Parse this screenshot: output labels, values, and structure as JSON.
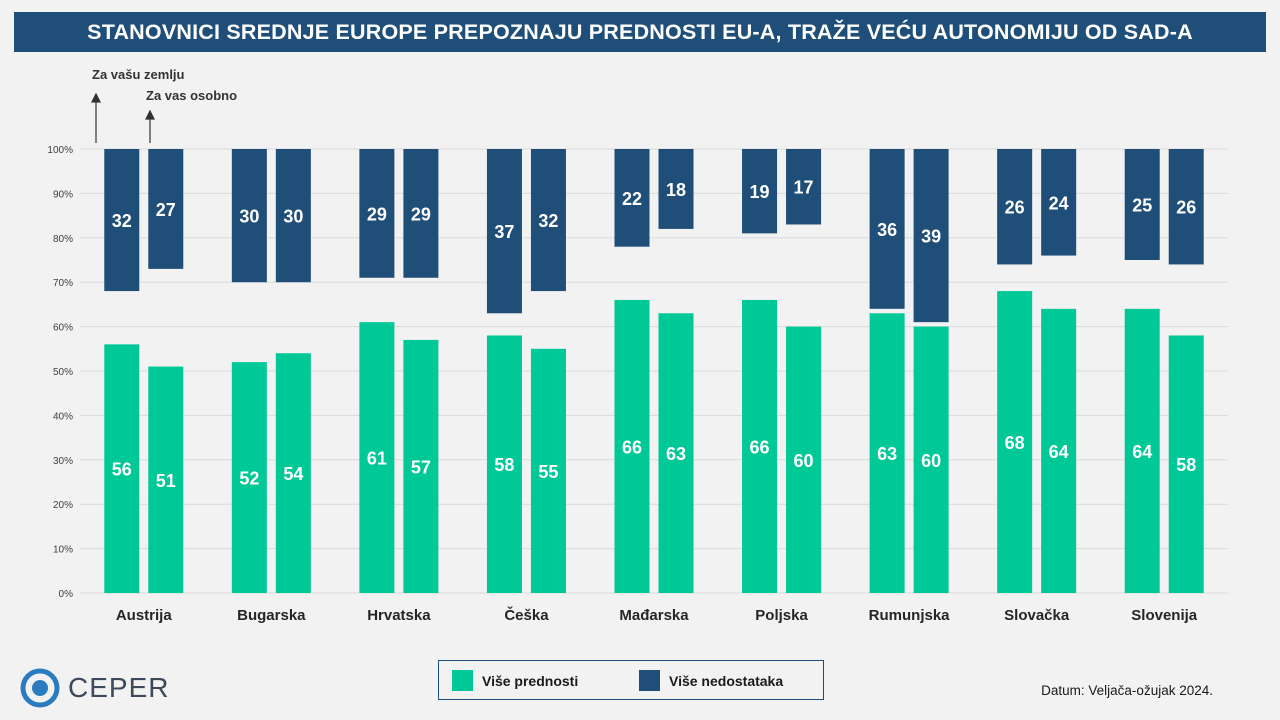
{
  "title": "STANOVNICI SREDNJE EUROPE PREPOZNAJU PREDNOSTI EU-A, TRAŽE VEĆU AUTONOMIJU OD SAD-A",
  "annotations": {
    "country": "Za vašu zemlju",
    "personal": "Za vas osobno"
  },
  "legend": {
    "advantages": "Više prednosti",
    "disadvantages": "Više nedostataka"
  },
  "footnote": "Datum: Veljača-ožujak 2024.",
  "logo": {
    "text": "CEPER"
  },
  "colors": {
    "advantages": "#00c896",
    "disadvantages": "#1f4e79",
    "title_bg": "#1f4e79",
    "logo_ring": "#2b7bc0"
  },
  "chart_data": {
    "type": "bar",
    "categories": [
      "Austrija",
      "Bugarska",
      "Hrvatska",
      "Češka",
      "Mađarska",
      "Poljska",
      "Rumunjska",
      "Slovačka",
      "Slovenija"
    ],
    "subcategories": [
      "Za vašu zemlju",
      "Za vas osobno"
    ],
    "ylim": [
      0,
      100
    ],
    "yticks": [
      "0%",
      "10%",
      "20%",
      "30%",
      "40%",
      "50%",
      "60%",
      "70%",
      "80%",
      "90%",
      "100%"
    ],
    "grid": true,
    "legend_position": "bottom",
    "series": [
      {
        "name": "Više prednosti",
        "anchor": "bottom",
        "values": [
          [
            56,
            51
          ],
          [
            52,
            54
          ],
          [
            61,
            57
          ],
          [
            58,
            55
          ],
          [
            66,
            63
          ],
          [
            66,
            60
          ],
          [
            63,
            60
          ],
          [
            68,
            64
          ],
          [
            64,
            58
          ]
        ]
      },
      {
        "name": "Više nedostataka",
        "anchor": "top",
        "values": [
          [
            32,
            27
          ],
          [
            30,
            30
          ],
          [
            29,
            29
          ],
          [
            37,
            32
          ],
          [
            22,
            18
          ],
          [
            19,
            17
          ],
          [
            36,
            39
          ],
          [
            26,
            24
          ],
          [
            25,
            26
          ]
        ]
      }
    ]
  }
}
